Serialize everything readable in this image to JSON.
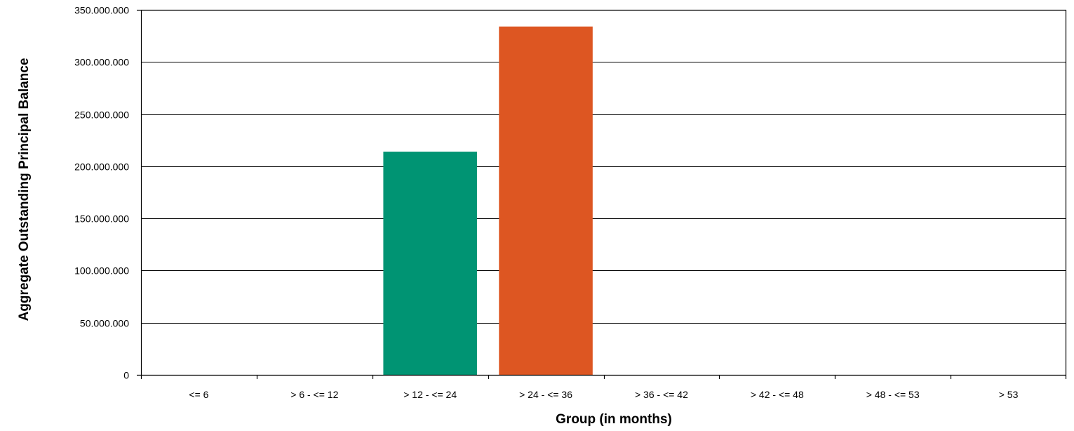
{
  "chart_data": {
    "type": "bar",
    "xlabel": "Group (in months)",
    "ylabel": "Aggregate Outstanding Principal Balance",
    "categories": [
      "<= 6",
      "> 6 - <= 12",
      "> 12 - <= 24",
      "> 24 - <= 36",
      "> 36 - <= 42",
      "> 42 - <= 48",
      "> 48 - <= 53",
      "> 53"
    ],
    "values": [
      0,
      0,
      214000000,
      334000000,
      0,
      0,
      0,
      0
    ],
    "bar_colors": [
      "#009473",
      "#009473",
      "#009473",
      "#DD5622",
      "#009473",
      "#009473",
      "#009473",
      "#009473"
    ],
    "ylim": [
      0,
      350000000
    ],
    "yticks": [
      0,
      50000000,
      100000000,
      150000000,
      200000000,
      250000000,
      300000000,
      350000000
    ],
    "ytick_labels": [
      "0",
      "50.000.000",
      "100.000.000",
      "150.000.000",
      "200.000.000",
      "250.000.000",
      "300.000.000",
      "350.000.000"
    ],
    "grid": true,
    "legend": "none"
  }
}
